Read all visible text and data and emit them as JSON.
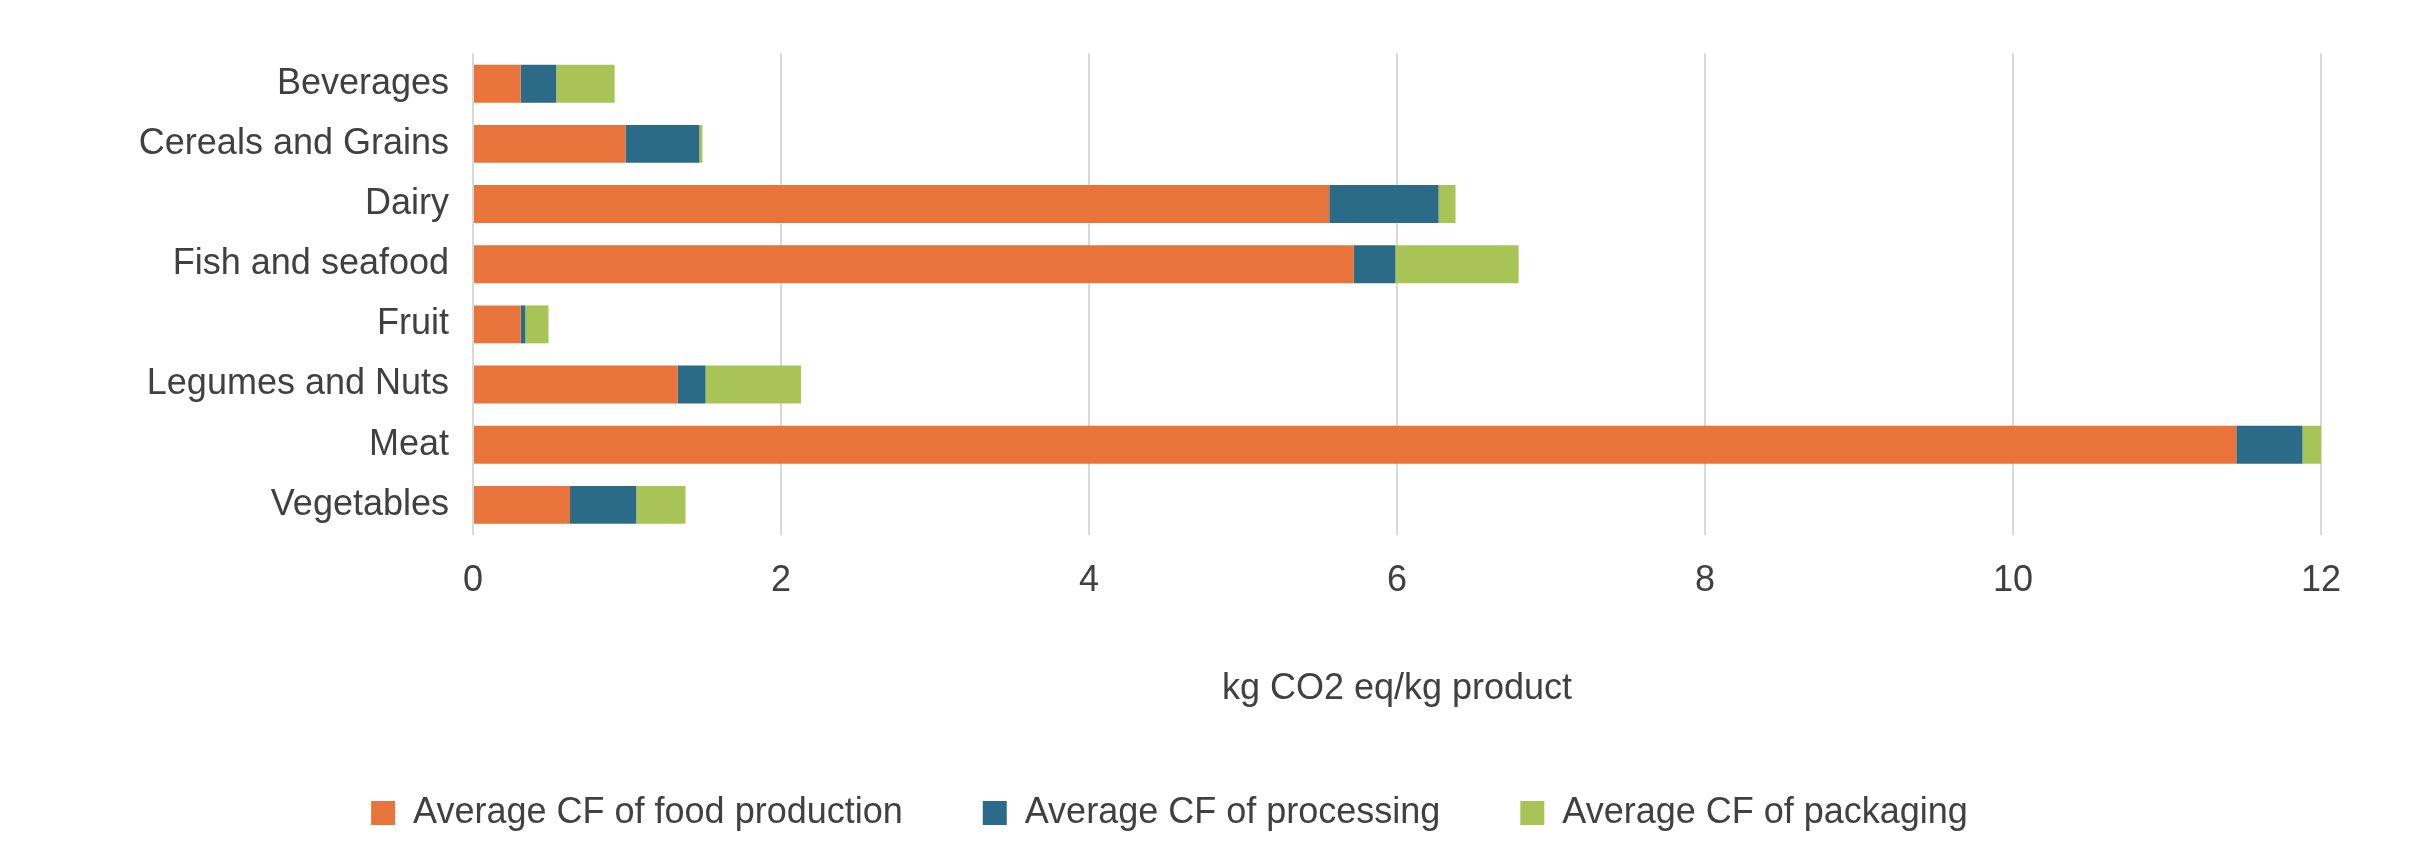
{
  "chart_data": {
    "type": "bar",
    "orientation": "horizontal",
    "stacked": true,
    "xlabel": "kg CO2 eq/kg product",
    "categories": [
      "Beverages",
      "Cereals and Grains",
      "Dairy",
      "Fish and seafood",
      "Fruit",
      "Legumes and Nuts",
      "Meat",
      "Vegetables"
    ],
    "series": [
      {
        "name": "Average CF of food production",
        "color": "#e8743b",
        "values": [
          0.31,
          0.99,
          5.56,
          5.72,
          0.31,
          1.33,
          11.45,
          0.63
        ]
      },
      {
        "name": "Average CF of processing",
        "color": "#2c6b87",
        "values": [
          0.23,
          0.48,
          0.71,
          0.27,
          0.03,
          0.18,
          0.43,
          0.43
        ]
      },
      {
        "name": "Average CF of packaging",
        "color": "#a9c456",
        "values": [
          0.38,
          0.02,
          0.11,
          0.8,
          0.15,
          0.62,
          0.12,
          0.32
        ]
      }
    ],
    "xlim": [
      0,
      12
    ],
    "xticks": [
      0,
      2,
      4,
      6,
      8,
      10,
      12
    ],
    "grid": "x",
    "legend": "bottom"
  }
}
